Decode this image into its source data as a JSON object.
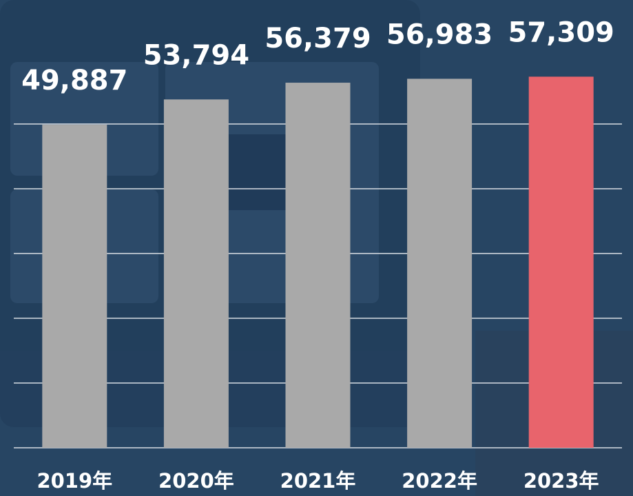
{
  "chart_data": {
    "type": "bar",
    "categories": [
      "2019年",
      "2020年",
      "2021年",
      "2022年",
      "2023年"
    ],
    "values": [
      49887,
      53794,
      56379,
      56983,
      57309
    ],
    "value_labels": [
      "49,887",
      "53,794",
      "56,379",
      "56,983",
      "57,309"
    ],
    "colors": [
      "#a9a9a9",
      "#a9a9a9",
      "#a9a9a9",
      "#a9a9a9",
      "#e8646c"
    ],
    "ylim": [
      0,
      60000
    ],
    "yticks": [
      0,
      10000,
      20000,
      30000,
      40000,
      50000
    ],
    "grid": true
  }
}
